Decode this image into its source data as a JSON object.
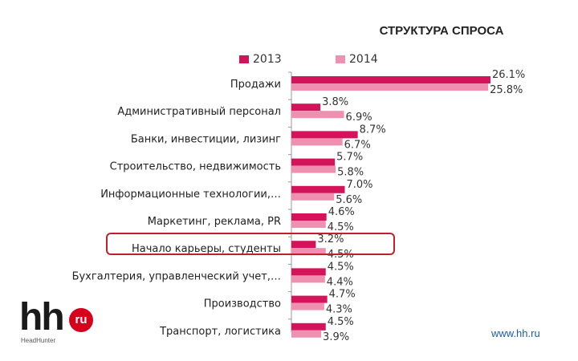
{
  "chart_data": {
    "type": "bar",
    "orientation": "horizontal",
    "title": "СТРУКТУРА СПРОСА",
    "categories": [
      "Продажи",
      "Административный персонал",
      "Банки, инвестиции, лизинг",
      "Строительство, недвижимость",
      "Информационные технологии,…",
      "Маркетинг, реклама, PR",
      "Начало карьеры, студенты",
      "Бухгалтерия, управленческий учет,…",
      "Производство",
      "Транспорт, логистика"
    ],
    "series": [
      {
        "name": "2013",
        "color": "#d4145a",
        "values": [
          26.1,
          3.8,
          8.7,
          5.7,
          7.0,
          4.6,
          3.2,
          4.5,
          4.7,
          4.5
        ],
        "labels": [
          "26.1%",
          "3.8%",
          "8.7%",
          "5.7%",
          "7.0%",
          "4.6%",
          "3.2%",
          "4.5%",
          "4.7%",
          "4.5%"
        ]
      },
      {
        "name": "2014",
        "color": "#f090b0",
        "values": [
          25.8,
          6.9,
          6.7,
          5.8,
          5.6,
          4.5,
          4.5,
          4.4,
          4.3,
          3.9
        ],
        "labels": [
          "25.8%",
          "6.9%",
          "6.7%",
          "5.8%",
          "5.6%",
          "4.5%",
          "4.5%",
          "4.4%",
          "4.3%",
          "3.9%"
        ]
      }
    ],
    "highlighted_category": "Начало карьеры, студенты",
    "legend_position": "top",
    "grid": false
  },
  "logo": {
    "main": "hh",
    "badge": "ru",
    "sub": "HeadHunter"
  },
  "footer": {
    "url": "www.hh.ru"
  },
  "colors": {
    "highlight_border": "#c0202b",
    "brand_red": "#d6001c"
  }
}
